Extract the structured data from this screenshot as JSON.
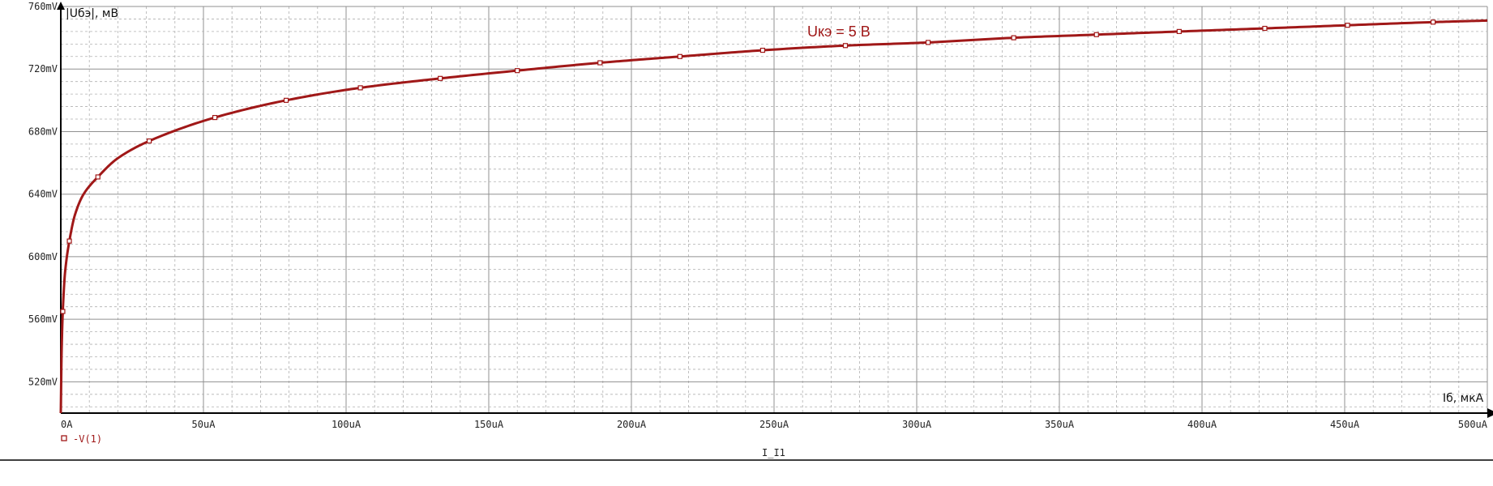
{
  "chart_data": {
    "type": "line",
    "ylabel": "|Uбэ|, мВ",
    "xlabel": "Iб, мкА",
    "footer_label": "I_I1",
    "annotation": "Uкэ = 5 В",
    "legend": {
      "marker": "square",
      "label": "-V(1)",
      "placement": "bottom-left"
    },
    "xlim": [
      0,
      500
    ],
    "ylim": [
      500,
      760
    ],
    "grid": true,
    "x_ticks": [
      {
        "value": 0,
        "label": "0A"
      },
      {
        "value": 50,
        "label": "50uA"
      },
      {
        "value": 100,
        "label": "100uA"
      },
      {
        "value": 150,
        "label": "150uA"
      },
      {
        "value": 200,
        "label": "200uA"
      },
      {
        "value": 250,
        "label": "250uA"
      },
      {
        "value": 300,
        "label": "300uA"
      },
      {
        "value": 350,
        "label": "350uA"
      },
      {
        "value": 400,
        "label": "400uA"
      },
      {
        "value": 450,
        "label": "450uA"
      },
      {
        "value": 500,
        "label": "500uA"
      }
    ],
    "y_ticks": [
      {
        "value": 520,
        "label": "520mV"
      },
      {
        "value": 560,
        "label": "560mV"
      },
      {
        "value": 600,
        "label": "600mV"
      },
      {
        "value": 640,
        "label": "640mV"
      },
      {
        "value": 680,
        "label": "680mV"
      },
      {
        "value": 720,
        "label": "720mV"
      },
      {
        "value": 760,
        "label": "760mV"
      }
    ],
    "colors": {
      "series": "#a01818",
      "grid_major": "#909090",
      "grid_minor": "#b0b0b0",
      "axis": "#000000"
    },
    "series": [
      {
        "name": "-V(1)",
        "x": [
          0,
          0.3,
          0.7,
          1.5,
          3,
          5,
          8,
          13,
          20,
          31,
          54,
          79,
          105,
          133,
          160,
          189,
          217,
          246,
          275,
          304,
          334,
          363,
          392,
          422,
          451,
          481,
          500
        ],
        "y": [
          500,
          540,
          565,
          590,
          610,
          627,
          640,
          651,
          663,
          674,
          689,
          700,
          708,
          714,
          719,
          724,
          728,
          732,
          735,
          737,
          740,
          742,
          744,
          746,
          748,
          750,
          751
        ],
        "markers_x": [
          0.7,
          3,
          13,
          31,
          54,
          79,
          105,
          133,
          160,
          189,
          217,
          246,
          275,
          304,
          334,
          363,
          392,
          422,
          451,
          481
        ]
      }
    ]
  }
}
